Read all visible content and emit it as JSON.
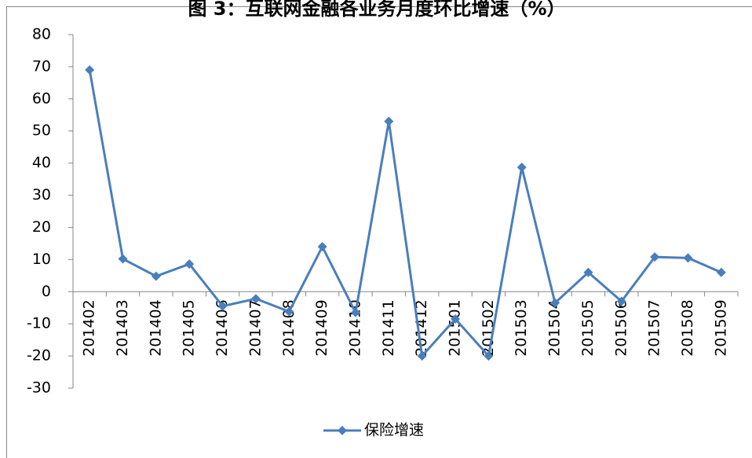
{
  "chart_data": {
    "type": "line",
    "title": "图 3：互联网金融各业务月度环比增速（%）",
    "categories": [
      "201402",
      "201403",
      "201404",
      "201405",
      "201406",
      "201407",
      "201408",
      "201409",
      "201410",
      "201411",
      "201412",
      "201501",
      "201502",
      "201503",
      "201504",
      "201505",
      "201506",
      "201507",
      "201508",
      "201509"
    ],
    "series": [
      {
        "name": "保险增速",
        "color": "#4a7ebb",
        "values": [
          69,
          10.2,
          4.8,
          8.6,
          -4.5,
          -2.2,
          -6.2,
          14,
          -6.5,
          53,
          -20,
          -8.5,
          -20,
          38.7,
          -3.5,
          6,
          -3,
          10.8,
          10.5,
          6
        ]
      }
    ],
    "ylim": [
      -30,
      80
    ],
    "yticks": [
      -30,
      -20,
      -10,
      0,
      10,
      20,
      30,
      40,
      50,
      60,
      70,
      80
    ],
    "legend": "bottom"
  }
}
